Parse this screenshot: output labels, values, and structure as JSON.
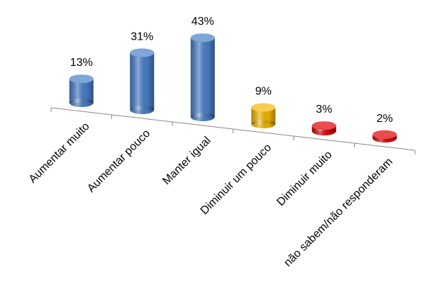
{
  "chart_data": {
    "type": "bar3d-cylinder",
    "categories": [
      "Aumentar muito",
      "Aumentar pouco",
      "Manter igual",
      "Diminuir um pouco",
      "Diminuir muito",
      "não sabem/não responderam"
    ],
    "values": [
      13,
      31,
      43,
      9,
      3,
      2
    ],
    "value_labels": [
      "13%",
      "31%",
      "43%",
      "9%",
      "3%",
      "2%"
    ],
    "colors": [
      "#4a7ec8",
      "#4a7ec8",
      "#4a7ec8",
      "#f2b800",
      "#e00000",
      "#e00000"
    ]
  }
}
